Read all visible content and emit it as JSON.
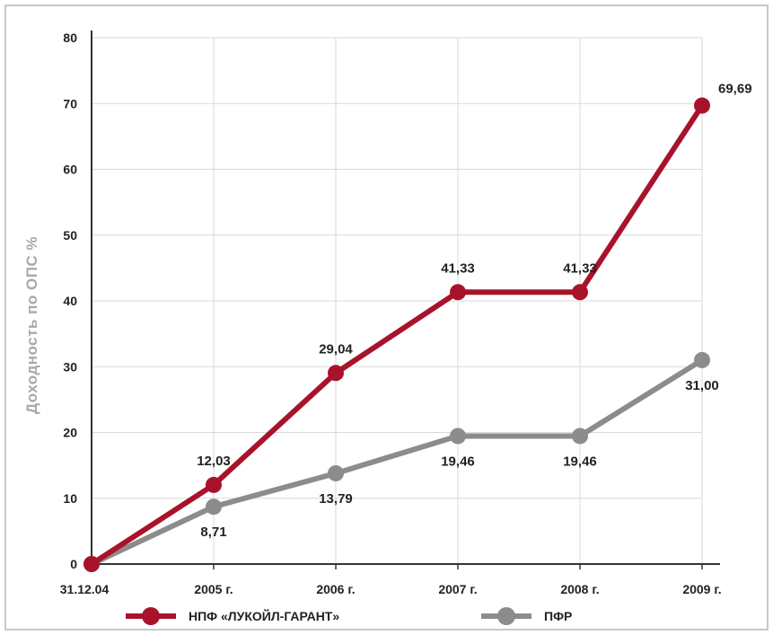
{
  "chart_data": {
    "type": "line",
    "ylabel": "Доходность по ОПС %",
    "xlabel": "",
    "ylim": [
      0,
      80
    ],
    "yticks": [
      "0",
      "10",
      "20",
      "30",
      "40",
      "50",
      "60",
      "70",
      "80"
    ],
    "categories": [
      "31.12.04",
      "2005 г.",
      "2006 г.",
      "2007 г.",
      "2008 г.",
      "2009 г."
    ],
    "grid": true,
    "legend_position": "bottom",
    "series": [
      {
        "name": "НПФ «ЛУКОЙЛ-ГАРАНТ»",
        "color": "#a8132b",
        "values": [
          0,
          12.03,
          29.04,
          41.33,
          41.33,
          69.69
        ],
        "labels": [
          "",
          "12,03",
          "29,04",
          "41,33",
          "41,33",
          "69,69"
        ],
        "label_side": [
          "",
          "above",
          "above",
          "above",
          "above",
          "right"
        ]
      },
      {
        "name": "ПФР",
        "color": "#8c8c8c",
        "values": [
          0,
          8.71,
          13.79,
          19.46,
          19.46,
          31.0
        ],
        "labels": [
          "",
          "8,71",
          "13,79",
          "19,46",
          "19,46",
          "31,00"
        ],
        "label_side": [
          "",
          "below",
          "below",
          "below",
          "below",
          "below"
        ]
      }
    ]
  }
}
